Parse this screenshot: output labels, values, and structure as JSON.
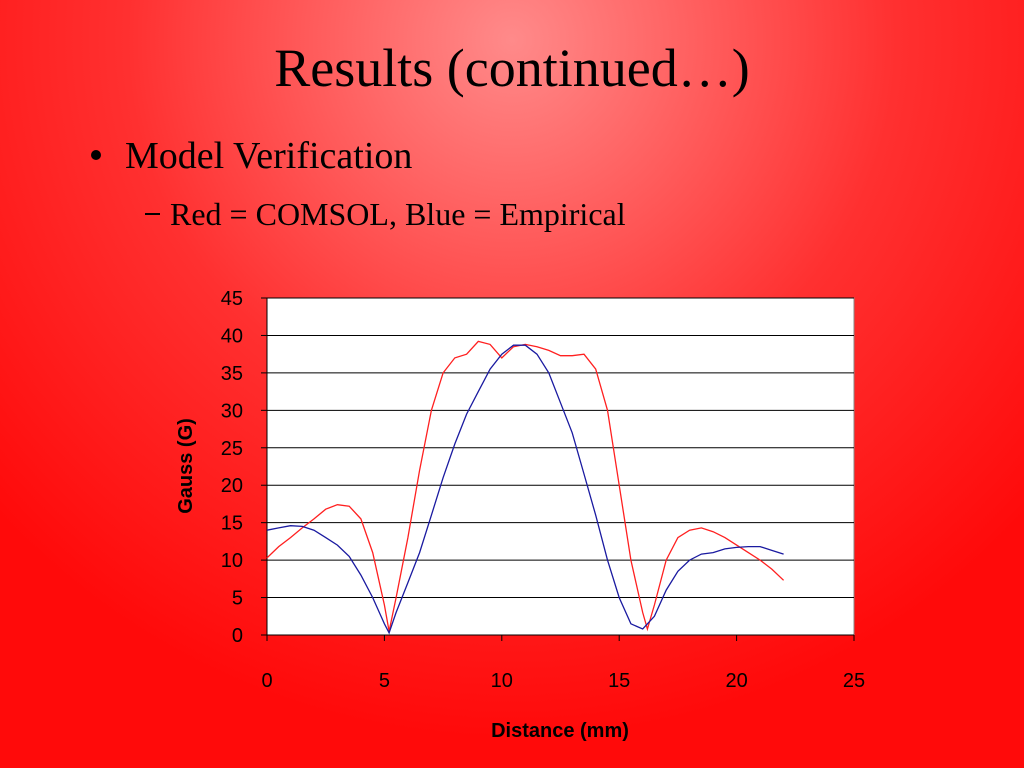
{
  "slide": {
    "title": "Results (continued…)",
    "bullet": "Model Verification",
    "sub_bullet": "Red = COMSOL, Blue = Empirical"
  },
  "chart_data": {
    "type": "line",
    "x_label": "Distance (mm)",
    "y_label": "Gauss (G)",
    "xlim": [
      0,
      25
    ],
    "xticks": [
      0,
      5,
      10,
      15,
      20,
      25
    ],
    "ylim": [
      0,
      45
    ],
    "yticks": [
      0,
      5,
      10,
      15,
      20,
      25,
      30,
      35,
      40,
      45
    ],
    "grid": true,
    "series": [
      {
        "name": "COMSOL",
        "color": "#ff2020",
        "x": [
          0,
          0.5,
          1,
          1.5,
          2,
          2.5,
          3,
          3.5,
          4,
          4.5,
          5,
          5.2,
          5.5,
          6,
          6.5,
          7,
          7.5,
          8,
          8.5,
          9,
          9.5,
          10,
          10.5,
          11,
          11.5,
          12,
          12.5,
          13,
          13.5,
          14,
          14.5,
          15,
          15.5,
          16,
          16.2,
          16.5,
          17,
          17.5,
          18,
          18.5,
          19,
          19.5,
          20,
          20.5,
          21,
          21.5,
          22
        ],
        "values": [
          10.3,
          11.8,
          13,
          14.3,
          15.5,
          16.8,
          17.4,
          17.2,
          15.5,
          11,
          4,
          0.5,
          5,
          13,
          22,
          30,
          35,
          37,
          37.5,
          39.2,
          38.8,
          37,
          38.5,
          38.8,
          38.5,
          38,
          37.3,
          37.3,
          37.5,
          35.5,
          30,
          20,
          10,
          3,
          0.8,
          4,
          10,
          13,
          14,
          14.3,
          13.8,
          13,
          12,
          11,
          10,
          8.8,
          7.3
        ]
      },
      {
        "name": "Empirical",
        "color": "#1a1aa0",
        "x": [
          0,
          0.5,
          1,
          1.5,
          2,
          2.5,
          3,
          3.5,
          4,
          4.5,
          5,
          5.2,
          5.5,
          6,
          6.5,
          7,
          7.5,
          8,
          8.5,
          9,
          9.5,
          10,
          10.5,
          11,
          11.5,
          12,
          12.5,
          13,
          13.5,
          14,
          14.5,
          15,
          15.5,
          16,
          16.5,
          17,
          17.5,
          18,
          18.5,
          19,
          19.5,
          20,
          20.5,
          21,
          21.5,
          22
        ],
        "values": [
          14,
          14.3,
          14.6,
          14.5,
          14,
          13,
          12,
          10.5,
          8,
          5,
          1.5,
          0.3,
          3,
          7,
          11,
          16,
          21,
          25.5,
          29.5,
          32.5,
          35.5,
          37.5,
          38.7,
          38.7,
          37.5,
          35,
          31,
          27,
          21.5,
          16,
          10,
          5,
          1.5,
          0.8,
          2.5,
          6,
          8.5,
          10,
          10.8,
          11,
          11.5,
          11.7,
          11.8,
          11.8,
          11.3,
          10.8
        ]
      }
    ]
  }
}
